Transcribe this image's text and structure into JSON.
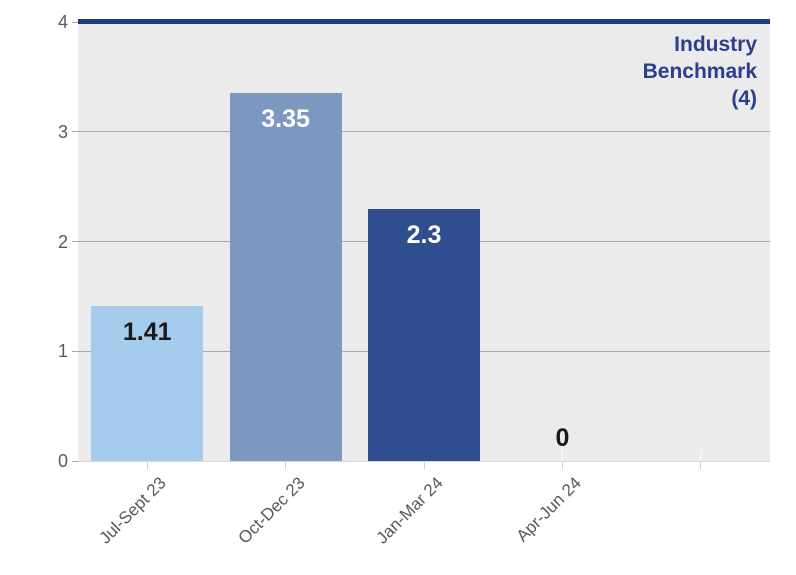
{
  "chart_data": {
    "type": "bar",
    "categories": [
      "Jul-Sept 23",
      "Oct-Dec 23",
      "Jan-Mar 24",
      "Apr-Jun 24"
    ],
    "values": [
      1.41,
      3.35,
      2.3,
      0
    ],
    "data_labels": [
      "1.41",
      "3.35",
      "2.3",
      "0"
    ],
    "bar_colors": [
      "#a5cbed",
      "#7c98c1",
      "#2f4d8f",
      "#2f4d8f"
    ],
    "data_label_colors": [
      "#1a1a1a",
      "#ffffff",
      "#ffffff",
      "#1a1a1a"
    ],
    "title": "",
    "xlabel": "",
    "ylabel": "",
    "ylim": [
      0,
      4
    ],
    "yticks": [
      "0",
      "1",
      "2",
      "3",
      "4"
    ],
    "grid": true,
    "num_category_slots": 5,
    "legend_position": "none",
    "benchmark": {
      "value": 4,
      "label": "Industry Benchmark (4)",
      "label_lines": [
        "Industry",
        "Benchmark",
        "(4)"
      ],
      "line_color": "#1f3c7c",
      "text_color": "#2c3e8e"
    },
    "style": {
      "plot_background": "#ebebeb",
      "gridline_color": "#a8a8a8",
      "axis_label_color": "#595959"
    }
  }
}
